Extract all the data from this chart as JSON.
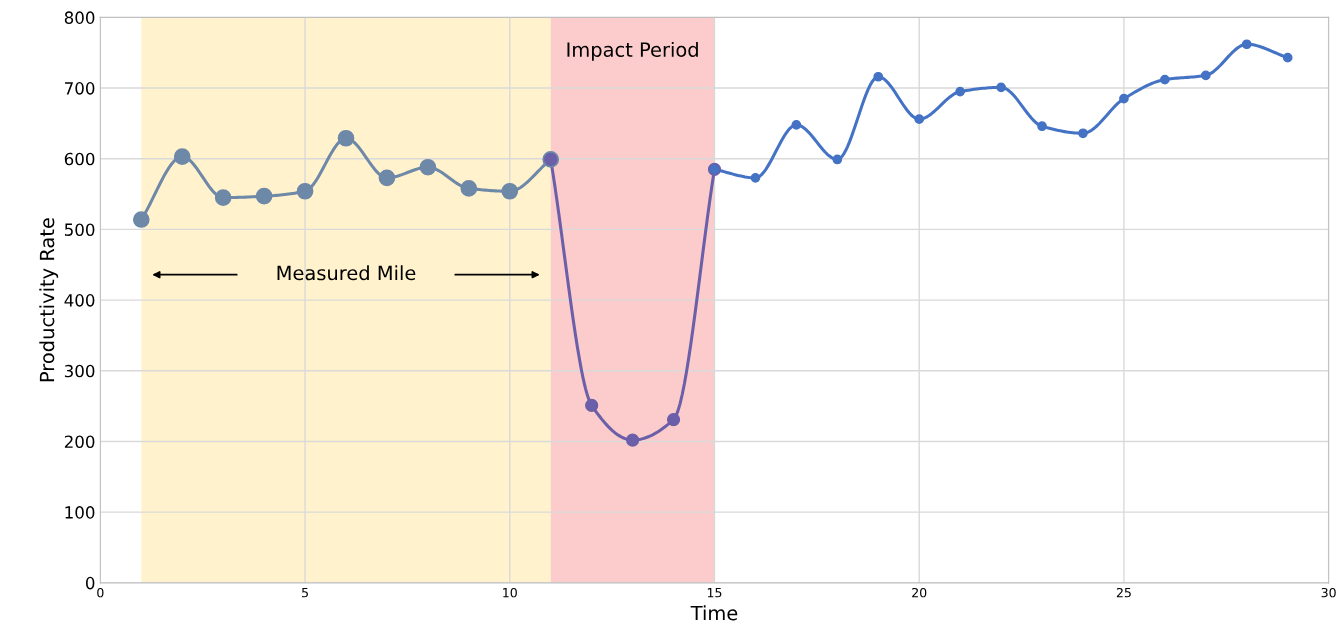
{
  "chart_data": {
    "type": "line",
    "xlabel": "Time",
    "ylabel": "Productivity Rate",
    "series": [
      {
        "color": "#6e88a8",
        "x": [
          1,
          2,
          3,
          4,
          5,
          6,
          7,
          8,
          9,
          10,
          11
        ],
        "values": [
          514,
          603,
          545,
          547,
          554,
          629,
          573,
          588,
          558,
          554,
          599
        ]
      },
      {
        "color": "#6a5fa8",
        "x": [
          11,
          12,
          13,
          14,
          15
        ],
        "values": [
          599,
          251,
          202,
          231,
          585
        ]
      },
      {
        "color": "#4472c4",
        "x": [
          15,
          16,
          17,
          18,
          19,
          20,
          21,
          22,
          23,
          24,
          25,
          26,
          27,
          28,
          29
        ],
        "values": [
          585,
          573,
          648,
          599,
          716,
          656,
          695,
          701,
          646,
          636,
          685,
          712,
          718,
          762,
          743
        ]
      }
    ],
    "bands": [
      {
        "axis": "x",
        "from": 1,
        "to": 11,
        "label": null,
        "color": "#fff2cc"
      },
      {
        "axis": "x",
        "from": 11,
        "to": 15,
        "label": "Impact Period",
        "color": "#fccbcb"
      }
    ],
    "annotations": [
      "Measured Mile"
    ],
    "xlim": [
      0,
      30
    ],
    "xticks": [
      0,
      5,
      10,
      15,
      20,
      25,
      30
    ],
    "ylim": [
      0,
      800
    ],
    "yticks": [
      0,
      100,
      200,
      300,
      400,
      500,
      600,
      700,
      800
    ],
    "grid": true,
    "marker": "circle",
    "line_style": "solid",
    "legend": false
  }
}
